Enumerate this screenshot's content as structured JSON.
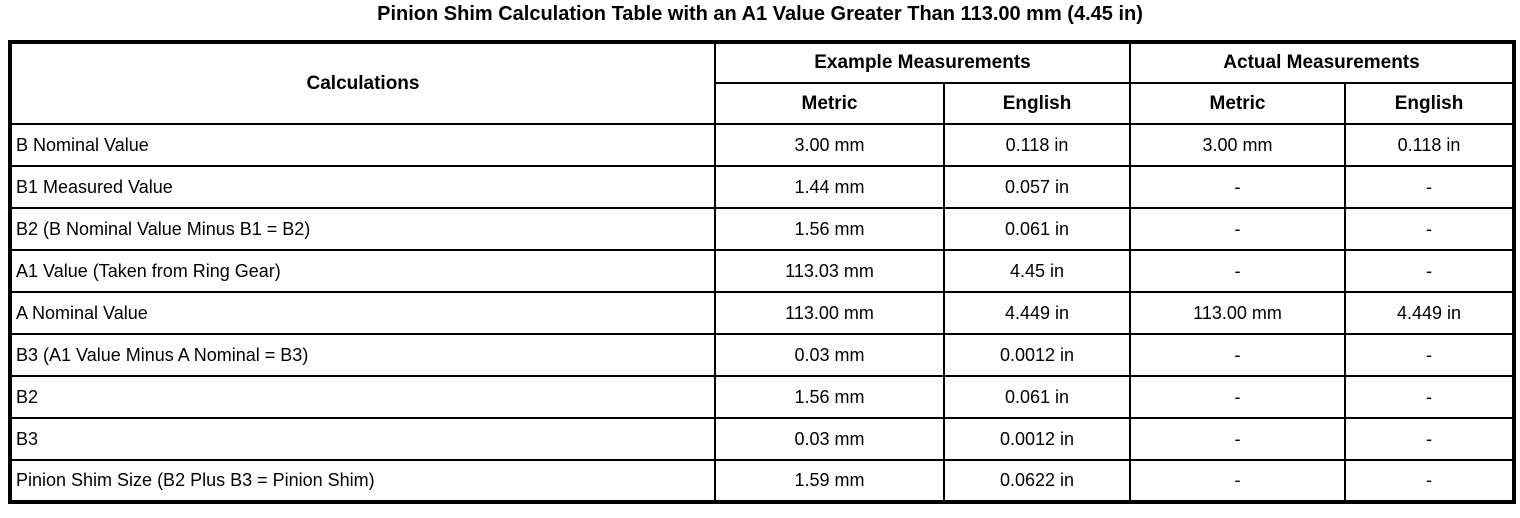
{
  "title": "Pinion Shim Calculation Table with an A1 Value Greater Than 113.00 mm (4.45 in)",
  "table": {
    "columns": {
      "calculations": "Calculations",
      "example_group": "Example Measurements",
      "actual_group": "Actual Measurements",
      "metric": "Metric",
      "english": "English"
    },
    "rows": [
      {
        "calculation": "B Nominal Value",
        "example_metric": "3.00 mm",
        "example_english": "0.118 in",
        "actual_metric": "3.00 mm",
        "actual_english": "0.118 in"
      },
      {
        "calculation": "B1 Measured Value",
        "example_metric": "1.44 mm",
        "example_english": "0.057 in",
        "actual_metric": "-",
        "actual_english": "-"
      },
      {
        "calculation": "B2 (B Nominal Value Minus B1 = B2)",
        "example_metric": "1.56 mm",
        "example_english": "0.061 in",
        "actual_metric": "-",
        "actual_english": "-"
      },
      {
        "calculation": "A1 Value (Taken from Ring Gear)",
        "example_metric": "113.03 mm",
        "example_english": "4.45 in",
        "actual_metric": "-",
        "actual_english": "-"
      },
      {
        "calculation": "A Nominal Value",
        "example_metric": "113.00 mm",
        "example_english": "4.449 in",
        "actual_metric": "113.00 mm",
        "actual_english": "4.449 in"
      },
      {
        "calculation": "B3 (A1 Value Minus A Nominal = B3)",
        "example_metric": "0.03 mm",
        "example_english": "0.0012 in",
        "actual_metric": "-",
        "actual_english": "-"
      },
      {
        "calculation": "B2",
        "example_metric": "1.56 mm",
        "example_english": "0.061 in",
        "actual_metric": "-",
        "actual_english": "-"
      },
      {
        "calculation": "B3",
        "example_metric": "0.03 mm",
        "example_english": "0.0012 in",
        "actual_metric": "-",
        "actual_english": "-"
      },
      {
        "calculation": "Pinion Shim Size (B2 Plus B3 = Pinion Shim)",
        "example_metric": "1.59 mm",
        "example_english": "0.0622 in",
        "actual_metric": "-",
        "actual_english": "-"
      }
    ]
  }
}
